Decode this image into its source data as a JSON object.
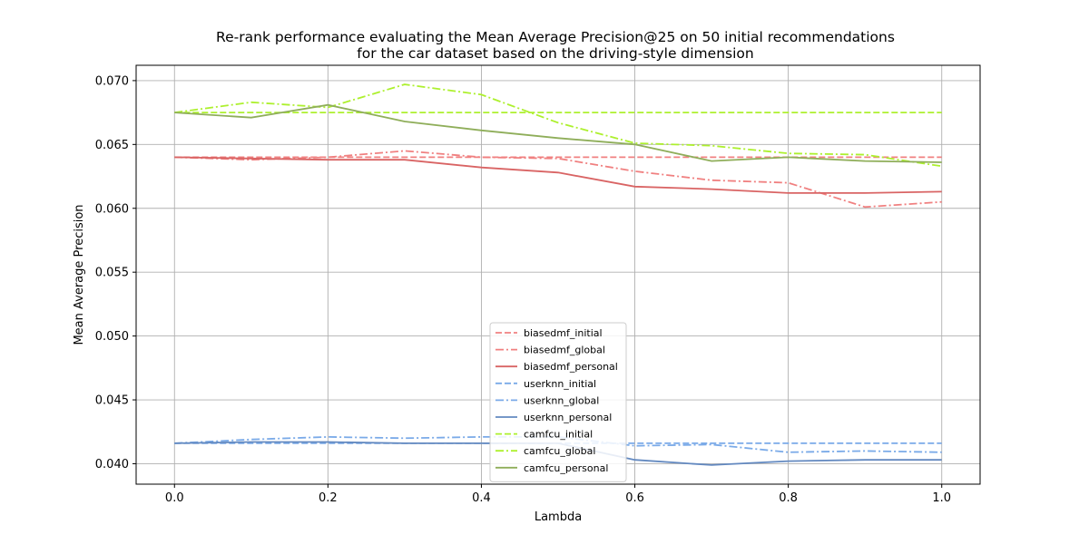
{
  "chart_data": {
    "type": "line",
    "title": "Re-rank performance evaluating the Mean Average Precision@25 on 50 initial recommendations",
    "subtitle": "for the car dataset based on the driving-style dimension",
    "xlabel": "Lambda",
    "ylabel": "Mean Average Precision",
    "xlim": [
      -0.05,
      1.05
    ],
    "ylim": [
      0.0384,
      0.0712
    ],
    "xticks": [
      0.0,
      0.2,
      0.4,
      0.6,
      0.8,
      1.0
    ],
    "xtick_labels": [
      "0.0",
      "0.2",
      "0.4",
      "0.6",
      "0.8",
      "1.0"
    ],
    "yticks": [
      0.04,
      0.045,
      0.05,
      0.055,
      0.06,
      0.065,
      0.07
    ],
    "ytick_labels": [
      "0.040",
      "0.045",
      "0.050",
      "0.055",
      "0.060",
      "0.065",
      "0.070"
    ],
    "grid": true,
    "legend_position": "lower-center",
    "x": [
      0.0,
      0.1,
      0.2,
      0.3,
      0.4,
      0.5,
      0.6,
      0.7,
      0.8,
      0.9,
      1.0
    ],
    "series": [
      {
        "name": "biasedmf_initial",
        "color": "#f08080",
        "dash": "dashed",
        "values": [
          0.064,
          0.064,
          0.064,
          0.064,
          0.064,
          0.064,
          0.064,
          0.064,
          0.064,
          0.064,
          0.064
        ]
      },
      {
        "name": "biasedmf_global",
        "color": "#f08080",
        "dash": "dashdot",
        "values": [
          0.064,
          0.0638,
          0.064,
          0.0645,
          0.064,
          0.0639,
          0.0629,
          0.0622,
          0.062,
          0.0601,
          0.0605
        ]
      },
      {
        "name": "biasedmf_personal",
        "color": "#d96464",
        "dash": "solid",
        "values": [
          0.064,
          0.0639,
          0.0638,
          0.0638,
          0.0632,
          0.0628,
          0.0617,
          0.0615,
          0.0612,
          0.0612,
          0.0613
        ]
      },
      {
        "name": "userknn_initial",
        "color": "#7aaae8",
        "dash": "dashed",
        "values": [
          0.0416,
          0.0416,
          0.0416,
          0.0416,
          0.0416,
          0.0416,
          0.0416,
          0.0416,
          0.0416,
          0.0416,
          0.0416
        ]
      },
      {
        "name": "userknn_global",
        "color": "#7aaae8",
        "dash": "dashdot",
        "values": [
          0.0416,
          0.0419,
          0.0421,
          0.042,
          0.0421,
          0.0421,
          0.0414,
          0.0415,
          0.0409,
          0.041,
          0.0409
        ]
      },
      {
        "name": "userknn_personal",
        "color": "#6389c0",
        "dash": "solid",
        "values": [
          0.0416,
          0.0417,
          0.0417,
          0.0416,
          0.0416,
          0.0416,
          0.0403,
          0.0399,
          0.0402,
          0.0403,
          0.0403
        ]
      },
      {
        "name": "camfcu_initial",
        "color": "#adf02e",
        "dash": "dashed",
        "values": [
          0.0675,
          0.0675,
          0.0675,
          0.0675,
          0.0675,
          0.0675,
          0.0675,
          0.0675,
          0.0675,
          0.0675,
          0.0675
        ]
      },
      {
        "name": "camfcu_global",
        "color": "#adf02e",
        "dash": "dashdot",
        "values": [
          0.0675,
          0.0683,
          0.0679,
          0.0697,
          0.0689,
          0.0667,
          0.0651,
          0.0649,
          0.0643,
          0.0642,
          0.0633
        ]
      },
      {
        "name": "camfcu_personal",
        "color": "#8fae5a",
        "dash": "solid",
        "values": [
          0.0675,
          0.0671,
          0.0681,
          0.0668,
          0.0661,
          0.0655,
          0.065,
          0.0637,
          0.064,
          0.0637,
          0.0636
        ]
      }
    ]
  }
}
